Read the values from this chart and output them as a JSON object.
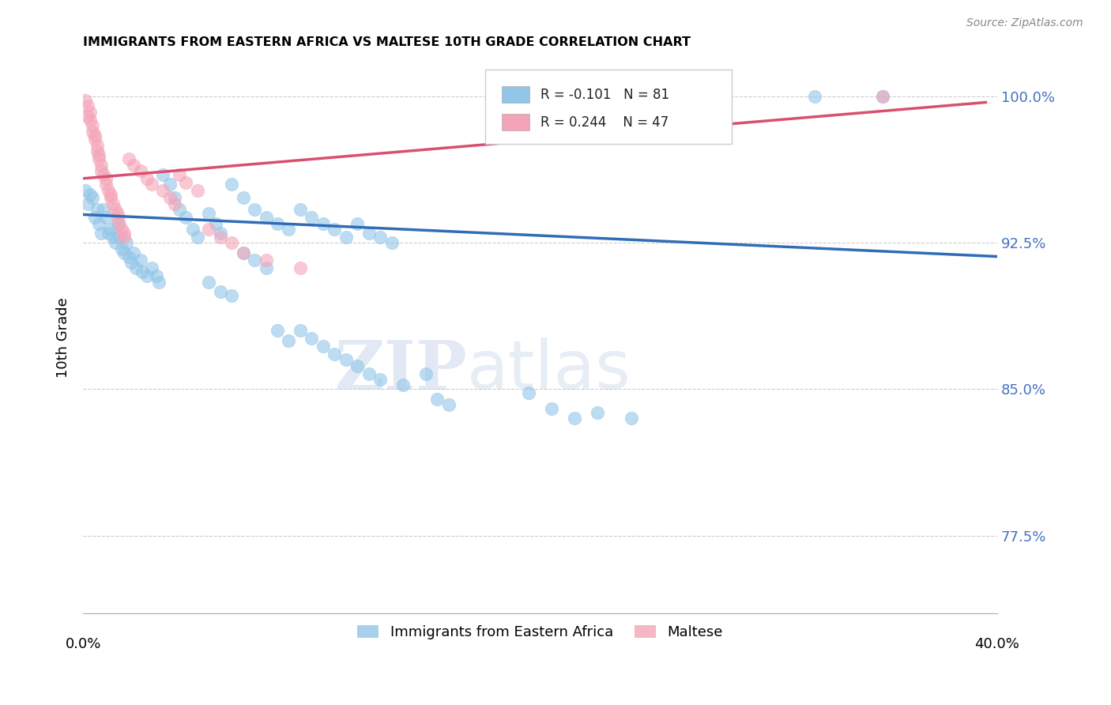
{
  "title": "IMMIGRANTS FROM EASTERN AFRICA VS MALTESE 10TH GRADE CORRELATION CHART",
  "source": "Source: ZipAtlas.com",
  "ylabel": "10th Grade",
  "xlim": [
    0.0,
    0.4
  ],
  "ylim": [
    0.735,
    1.018
  ],
  "yticks": [
    0.775,
    0.85,
    0.925,
    1.0
  ],
  "ytick_labels": [
    "77.5%",
    "85.0%",
    "92.5%",
    "100.0%"
  ],
  "legend_r_blue": "-0.101",
  "legend_n_blue": "81",
  "legend_r_pink": "0.244",
  "legend_n_pink": "47",
  "legend_label_blue": "Immigrants from Eastern Africa",
  "legend_label_pink": "Maltese",
  "color_blue": "#92C5E8",
  "color_pink": "#F4A4B8",
  "line_color_blue": "#2F6DB5",
  "line_color_pink": "#D94F70",
  "watermark_zip": "ZIP",
  "watermark_atlas": "atlas",
  "blue_line_x": [
    0.0,
    0.4
  ],
  "blue_line_y": [
    0.9395,
    0.918
  ],
  "pink_line_x": [
    0.0,
    0.395
  ],
  "pink_line_y": [
    0.958,
    0.997
  ],
  "blue_points": [
    [
      0.001,
      0.952
    ],
    [
      0.002,
      0.945
    ],
    [
      0.003,
      0.95
    ],
    [
      0.004,
      0.948
    ],
    [
      0.005,
      0.938
    ],
    [
      0.006,
      0.942
    ],
    [
      0.007,
      0.935
    ],
    [
      0.008,
      0.93
    ],
    [
      0.009,
      0.942
    ],
    [
      0.01,
      0.938
    ],
    [
      0.011,
      0.93
    ],
    [
      0.012,
      0.932
    ],
    [
      0.013,
      0.928
    ],
    [
      0.014,
      0.925
    ],
    [
      0.015,
      0.935
    ],
    [
      0.016,
      0.928
    ],
    [
      0.017,
      0.922
    ],
    [
      0.018,
      0.92
    ],
    [
      0.019,
      0.925
    ],
    [
      0.02,
      0.918
    ],
    [
      0.021,
      0.915
    ],
    [
      0.022,
      0.92
    ],
    [
      0.023,
      0.912
    ],
    [
      0.025,
      0.916
    ],
    [
      0.026,
      0.91
    ],
    [
      0.028,
      0.908
    ],
    [
      0.03,
      0.912
    ],
    [
      0.032,
      0.908
    ],
    [
      0.033,
      0.905
    ],
    [
      0.035,
      0.96
    ],
    [
      0.038,
      0.955
    ],
    [
      0.04,
      0.948
    ],
    [
      0.042,
      0.942
    ],
    [
      0.045,
      0.938
    ],
    [
      0.048,
      0.932
    ],
    [
      0.05,
      0.928
    ],
    [
      0.055,
      0.94
    ],
    [
      0.058,
      0.935
    ],
    [
      0.06,
      0.93
    ],
    [
      0.065,
      0.955
    ],
    [
      0.07,
      0.948
    ],
    [
      0.075,
      0.942
    ],
    [
      0.08,
      0.938
    ],
    [
      0.085,
      0.935
    ],
    [
      0.09,
      0.932
    ],
    [
      0.095,
      0.942
    ],
    [
      0.1,
      0.938
    ],
    [
      0.105,
      0.935
    ],
    [
      0.11,
      0.932
    ],
    [
      0.115,
      0.928
    ],
    [
      0.12,
      0.935
    ],
    [
      0.125,
      0.93
    ],
    [
      0.13,
      0.928
    ],
    [
      0.135,
      0.925
    ],
    [
      0.055,
      0.905
    ],
    [
      0.06,
      0.9
    ],
    [
      0.065,
      0.898
    ],
    [
      0.07,
      0.92
    ],
    [
      0.075,
      0.916
    ],
    [
      0.08,
      0.912
    ],
    [
      0.085,
      0.88
    ],
    [
      0.09,
      0.875
    ],
    [
      0.095,
      0.88
    ],
    [
      0.1,
      0.876
    ],
    [
      0.105,
      0.872
    ],
    [
      0.11,
      0.868
    ],
    [
      0.115,
      0.865
    ],
    [
      0.12,
      0.862
    ],
    [
      0.125,
      0.858
    ],
    [
      0.13,
      0.855
    ],
    [
      0.14,
      0.852
    ],
    [
      0.15,
      0.858
    ],
    [
      0.155,
      0.845
    ],
    [
      0.16,
      0.842
    ],
    [
      0.195,
      0.848
    ],
    [
      0.205,
      0.84
    ],
    [
      0.215,
      0.835
    ],
    [
      0.225,
      0.838
    ],
    [
      0.24,
      0.835
    ],
    [
      0.32,
      1.0
    ],
    [
      0.35,
      1.0
    ]
  ],
  "pink_points": [
    [
      0.001,
      0.998
    ],
    [
      0.002,
      0.995
    ],
    [
      0.002,
      0.99
    ],
    [
      0.003,
      0.992
    ],
    [
      0.003,
      0.988
    ],
    [
      0.004,
      0.985
    ],
    [
      0.004,
      0.982
    ],
    [
      0.005,
      0.98
    ],
    [
      0.005,
      0.978
    ],
    [
      0.006,
      0.975
    ],
    [
      0.006,
      0.972
    ],
    [
      0.007,
      0.97
    ],
    [
      0.007,
      0.968
    ],
    [
      0.008,
      0.965
    ],
    [
      0.008,
      0.962
    ],
    [
      0.009,
      0.96
    ],
    [
      0.01,
      0.958
    ],
    [
      0.01,
      0.955
    ],
    [
      0.011,
      0.952
    ],
    [
      0.012,
      0.95
    ],
    [
      0.012,
      0.948
    ],
    [
      0.013,
      0.945
    ],
    [
      0.014,
      0.942
    ],
    [
      0.015,
      0.94
    ],
    [
      0.015,
      0.938
    ],
    [
      0.016,
      0.935
    ],
    [
      0.017,
      0.932
    ],
    [
      0.018,
      0.93
    ],
    [
      0.018,
      0.928
    ],
    [
      0.02,
      0.968
    ],
    [
      0.022,
      0.965
    ],
    [
      0.025,
      0.962
    ],
    [
      0.028,
      0.958
    ],
    [
      0.03,
      0.955
    ],
    [
      0.035,
      0.952
    ],
    [
      0.038,
      0.948
    ],
    [
      0.04,
      0.945
    ],
    [
      0.042,
      0.96
    ],
    [
      0.045,
      0.956
    ],
    [
      0.05,
      0.952
    ],
    [
      0.055,
      0.932
    ],
    [
      0.06,
      0.928
    ],
    [
      0.065,
      0.925
    ],
    [
      0.07,
      0.92
    ],
    [
      0.08,
      0.916
    ],
    [
      0.095,
      0.912
    ],
    [
      0.35,
      1.0
    ]
  ]
}
